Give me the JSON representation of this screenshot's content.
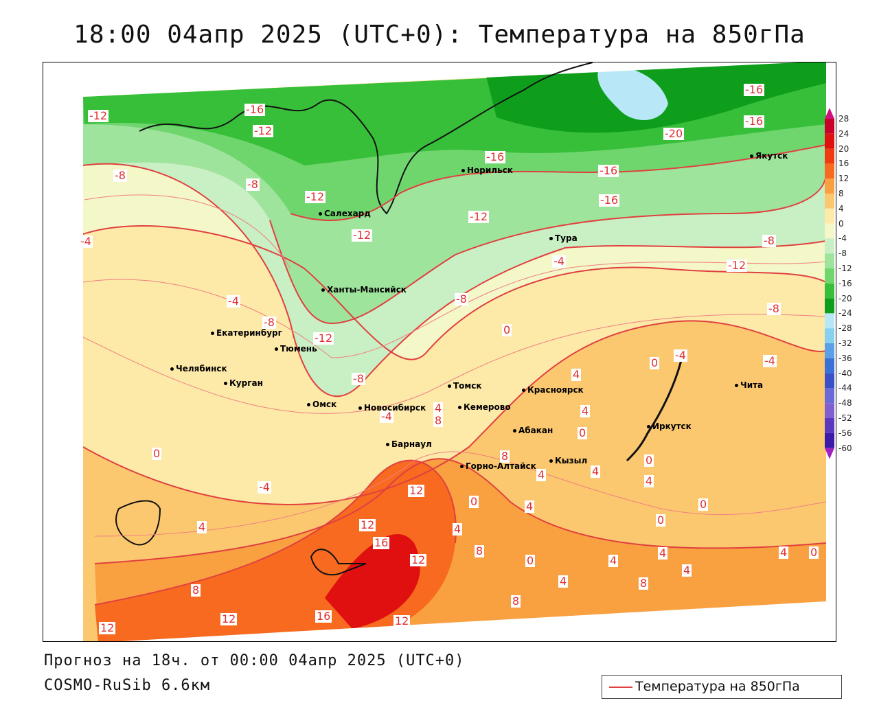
{
  "title": "18:00 04апр 2025 (UTC+0): Температура на 850гПа",
  "footer": {
    "forecast": "Прогноз на 18ч. от 00:00 04апр 2025 (UTC+0)",
    "model": "COSMO-RuSib 6.6км"
  },
  "legend": {
    "label": "Температура на 850гПа",
    "line_color": "#e04040"
  },
  "colorscale": {
    "labels": [
      "28",
      "24",
      "20",
      "16",
      "12",
      "8",
      "4",
      "0",
      "-4",
      "-8",
      "-12",
      "-16",
      "-20",
      "-24",
      "-28",
      "-32",
      "-36",
      "-40",
      "-44",
      "-48",
      "-52",
      "-56",
      "-60"
    ],
    "colors": [
      "#c8002a",
      "#e01010",
      "#f03a10",
      "#f76a20",
      "#f9a040",
      "#fbc870",
      "#fde9a8",
      "#f4f7c8",
      "#c9efc4",
      "#9fe49c",
      "#6fd66e",
      "#38bf3a",
      "#0f9e1c",
      "#b8e8f7",
      "#88d0f0",
      "#5aa0e8",
      "#3a70d8",
      "#3a50c8",
      "#6a6ad8",
      "#8060d0",
      "#5a38c0",
      "#3a1aa8",
      "#a020c0"
    ]
  },
  "cities": [
    {
      "name": "Норильск",
      "id": "norilsk"
    },
    {
      "name": "Якутск",
      "id": "yakutsk"
    },
    {
      "name": "Салехард",
      "id": "salekhard"
    },
    {
      "name": "Тура",
      "id": "tura"
    },
    {
      "name": "Ханты-Мансийск",
      "id": "khanty"
    },
    {
      "name": "Екатеринбург",
      "id": "ekat"
    },
    {
      "name": "Тюмень",
      "id": "tyumen"
    },
    {
      "name": "Челябинск",
      "id": "chelyab"
    },
    {
      "name": "Курган",
      "id": "kurgan"
    },
    {
      "name": "Омск",
      "id": "omsk"
    },
    {
      "name": "Томск",
      "id": "tomsk"
    },
    {
      "name": "Красноярск",
      "id": "krasnoyarsk"
    },
    {
      "name": "Новосибирск",
      "id": "novosib"
    },
    {
      "name": "Кемерово",
      "id": "kemerovo"
    },
    {
      "name": "Барнаул",
      "id": "barnaul"
    },
    {
      "name": "Абакан",
      "id": "abakan"
    },
    {
      "name": "Иркутск",
      "id": "irkutsk"
    },
    {
      "name": "Чита",
      "id": "chita"
    },
    {
      "name": "Горно-Алтайск",
      "id": "gorno"
    },
    {
      "name": "Кызыл",
      "id": "kyzyl"
    }
  ],
  "isotherm_labels": [
    "-12",
    "-16",
    "-12",
    "-16",
    "-16",
    "-8",
    "-8",
    "-12",
    "-16",
    "-20",
    "-16",
    "-16",
    "-12",
    "-12",
    "-8",
    "-12",
    "-4",
    "-4",
    "-4",
    "-8",
    "-8",
    "-8",
    "-12",
    "0",
    "-4",
    "-8",
    "-4",
    "0",
    "4",
    "-4",
    "4",
    "4",
    "8",
    "0",
    "0",
    "4",
    "8",
    "4",
    "4",
    "-4",
    "4",
    "0",
    "12",
    "12",
    "16",
    "12",
    "16",
    "12",
    "8",
    "8",
    "12",
    "12",
    "4",
    "8",
    "0",
    "4",
    "4",
    "8",
    "4",
    "4",
    "4",
    "0",
    "0",
    "0",
    "4",
    "0"
  ]
}
